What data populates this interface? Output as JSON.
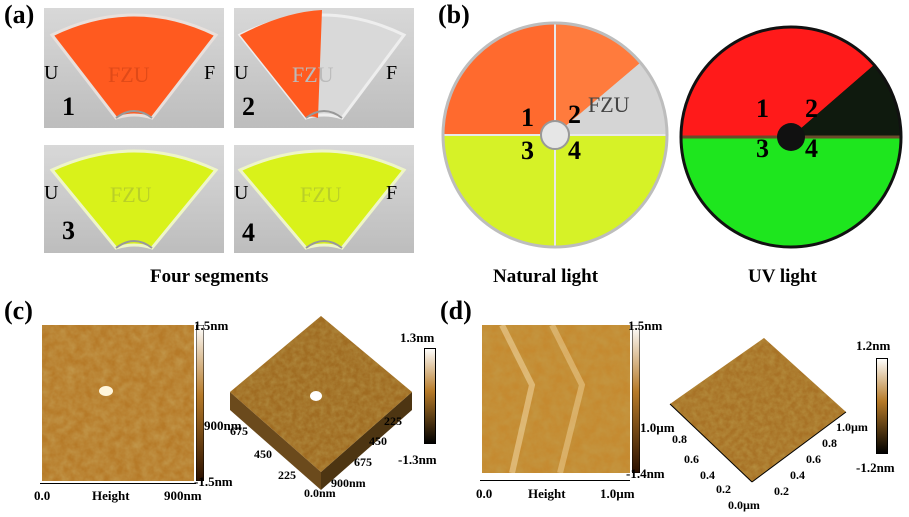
{
  "panels": {
    "a": {
      "label": "(a)",
      "caption": "Four segments",
      "segments": [
        {
          "number": "1",
          "text": "FZU",
          "left": "U",
          "right": "F",
          "color": "#ff5a1f"
        },
        {
          "number": "2",
          "text": "FZU",
          "left": "U",
          "right": "F",
          "color": "#ff5a1f"
        },
        {
          "number": "3",
          "text": "FZU",
          "left": "U",
          "right": "",
          "color": "#d9f21a"
        },
        {
          "number": "4",
          "text": "FZU",
          "left": "U",
          "right": "F",
          "color": "#d9f21a"
        }
      ]
    },
    "b": {
      "label": "(b)",
      "natural_caption": "Natural light",
      "uv_caption": "UV light",
      "disc_text": "FZU",
      "quadrant_numbers": [
        "1",
        "2",
        "3",
        "4"
      ],
      "colors": {
        "natural_orange": "#ff6a2e",
        "natural_yellow": "#d6f227",
        "natural_gray": "#d7d7d7",
        "uv_red": "#ff1a1a",
        "uv_green": "#1ee61e",
        "uv_dark": "#102010"
      }
    },
    "c": {
      "label": "(c)",
      "map2d": {
        "x_start": "0.0",
        "x_label": "Height",
        "x_end": "900nm",
        "scale_top": "1.5nm",
        "scale_mid": "900nm",
        "scale_bottom": "-1.5nm"
      },
      "map3d": {
        "scale_top": "1.3nm",
        "scale_bottom": "-1.3nm",
        "axis_left": [
          "675",
          "450",
          "225",
          "0.0nm"
        ],
        "axis_right": [
          "225",
          "450",
          "675",
          "900nm"
        ]
      }
    },
    "d": {
      "label": "(d)",
      "map2d": {
        "x_start": "0.0",
        "x_label": "Height",
        "x_end": "1.0µm",
        "scale_top": "1.5nm",
        "scale_mid": "1.0µm",
        "scale_bottom": "-1.4nm"
      },
      "map3d": {
        "scale_top": "1.2nm",
        "scale_bottom": "-1.2nm",
        "axis_left": [
          "0.8",
          "0.6",
          "0.4",
          "0.2",
          "0.0µm"
        ],
        "axis_right": [
          "1.0µm",
          "0.8",
          "0.6",
          "0.4",
          "0.2"
        ]
      }
    }
  }
}
